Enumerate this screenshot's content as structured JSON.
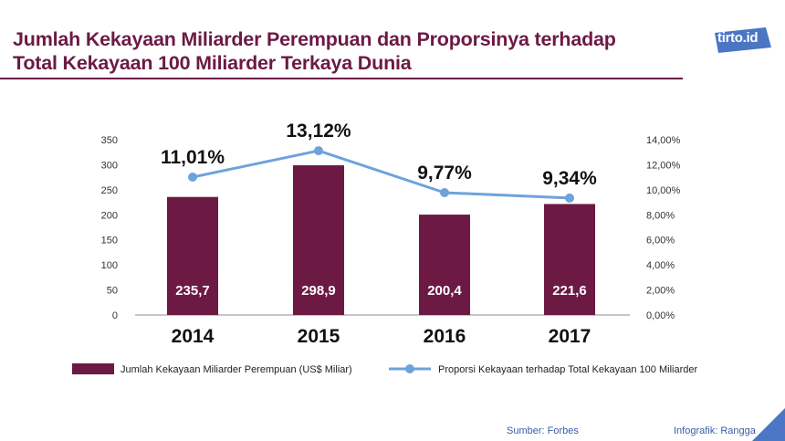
{
  "header": {
    "title_line1": "Jumlah Kekayaan Miliarder Perempuan dan Proporsinya terhadap",
    "title_line2": "Total Kekayaan 100 Miliarder Terkaya Dunia",
    "logo_text": "tirto.id"
  },
  "footer": {
    "source": "Sumber: Forbes",
    "credit": "Infografik: Rangga"
  },
  "colors": {
    "bar": "#6c1a43",
    "line": "#6ea2dc",
    "title": "#6c1a43",
    "footer": "#3a5ba7",
    "logo": "#4a76c4"
  },
  "chart_data": {
    "type": "bar",
    "title": "",
    "categories": [
      "2014",
      "2015",
      "2016",
      "2017"
    ],
    "series": [
      {
        "name": "Jumlah Kekayaan Miliarder Perempuan (US$ Miliar)",
        "type": "bar",
        "axis": "left",
        "values": [
          235.7,
          298.9,
          200.4,
          221.6
        ],
        "labels": [
          "235,7",
          "298,9",
          "200,4",
          "221,6"
        ]
      },
      {
        "name": "Proporsi Kekayaan terhadap Total Kekayaan 100 Miliarder",
        "type": "line",
        "axis": "right",
        "values": [
          11.01,
          13.12,
          9.77,
          9.34
        ],
        "labels": [
          "11,01%",
          "13,12%",
          "9,77%",
          "9,34%"
        ]
      }
    ],
    "y_left": {
      "range": [
        0,
        350
      ],
      "ticks": [
        0,
        50,
        100,
        150,
        200,
        250,
        300,
        350
      ],
      "tick_labels": [
        "0",
        "50",
        "100",
        "150",
        "200",
        "250",
        "300",
        "350"
      ]
    },
    "y_right": {
      "range": [
        0,
        14
      ],
      "ticks": [
        0,
        2,
        4,
        6,
        8,
        10,
        12,
        14
      ],
      "tick_labels": [
        "0,00%",
        "2,00%",
        "4,00%",
        "6,00%",
        "8,00%",
        "10,00%",
        "12,00%",
        "14,00%"
      ]
    },
    "xlabel": "",
    "ylabel": "",
    "grid": false,
    "legend": "bottom"
  }
}
